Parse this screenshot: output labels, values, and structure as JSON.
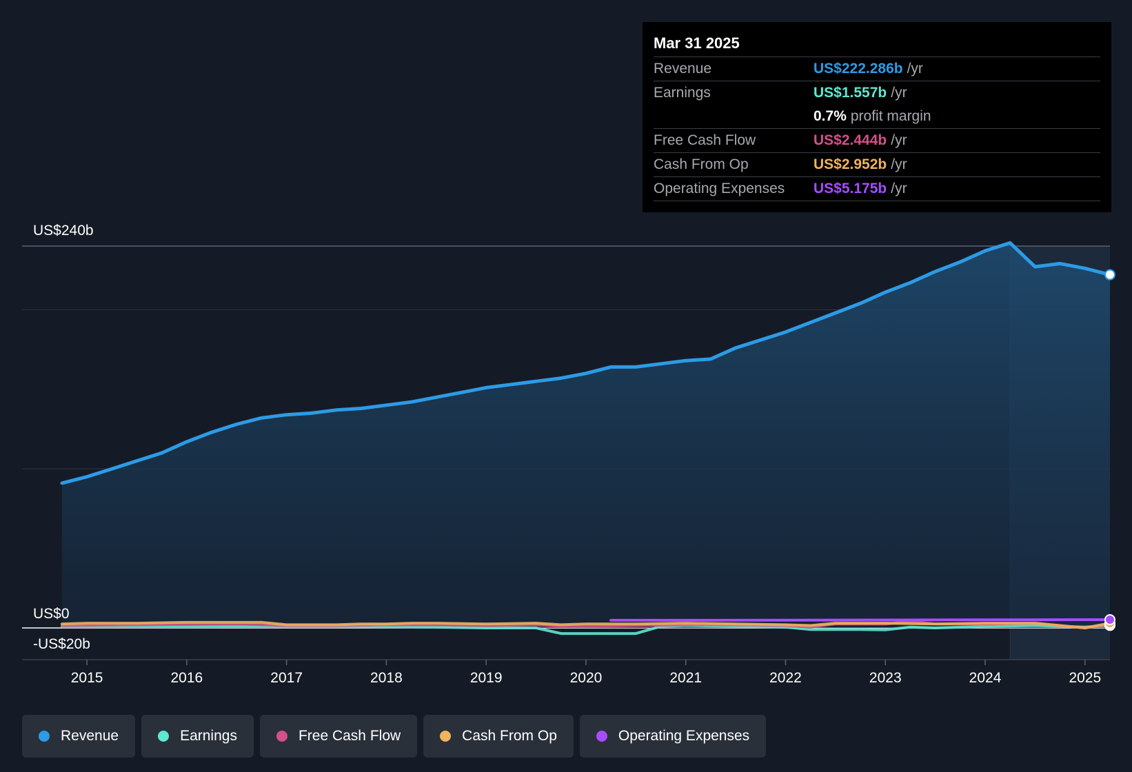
{
  "tooltip": {
    "date": "Mar 31 2025",
    "rows": [
      {
        "label": "Revenue",
        "value": "US$222.286b",
        "unit": "/yr",
        "color": "#2d9be6"
      },
      {
        "label": "Earnings",
        "value": "US$1.557b",
        "unit": "/yr",
        "color": "#5ee8d1"
      },
      {
        "label": "",
        "value": "0.7%",
        "unit": "profit margin",
        "color": "#ffffff"
      },
      {
        "label": "Free Cash Flow",
        "value": "US$2.444b",
        "unit": "/yr",
        "color": "#d4508a"
      },
      {
        "label": "Cash From Op",
        "value": "US$2.952b",
        "unit": "/yr",
        "color": "#f0b35e"
      },
      {
        "label": "Operating Expenses",
        "value": "US$5.175b",
        "unit": "/yr",
        "color": "#a64dff"
      }
    ]
  },
  "legend": [
    {
      "label": "Revenue",
      "color": "#2d9be6"
    },
    {
      "label": "Earnings",
      "color": "#5ee8d1"
    },
    {
      "label": "Free Cash Flow",
      "color": "#d4508a"
    },
    {
      "label": "Cash From Op",
      "color": "#f0b35e"
    },
    {
      "label": "Operating Expenses",
      "color": "#a64dff"
    }
  ],
  "chart_data": {
    "type": "line",
    "title": "",
    "xlabel": "",
    "ylabel": "",
    "y_axis_labels": [
      "US$240b",
      "US$0",
      "-US$20b"
    ],
    "x_tick_labels": [
      "2015",
      "2016",
      "2017",
      "2018",
      "2019",
      "2020",
      "2021",
      "2022",
      "2023",
      "2024",
      "2025"
    ],
    "xlim": [
      2014.35,
      2025.25
    ],
    "ylim": [
      -20,
      240
    ],
    "grid": true,
    "legend_position": "bottom",
    "highlight_start": 2024.25,
    "series": [
      {
        "name": "Revenue",
        "color": "#2d9be6",
        "area": true,
        "x": [
          2014.75,
          2015.0,
          2015.25,
          2015.5,
          2015.75,
          2016.0,
          2016.25,
          2016.5,
          2016.75,
          2017.0,
          2017.25,
          2017.5,
          2017.75,
          2018.0,
          2018.25,
          2018.5,
          2018.75,
          2019.0,
          2019.25,
          2019.5,
          2019.75,
          2020.0,
          2020.25,
          2020.5,
          2020.75,
          2021.0,
          2021.25,
          2021.5,
          2021.75,
          2022.0,
          2022.25,
          2022.5,
          2022.75,
          2023.0,
          2023.25,
          2023.5,
          2023.75,
          2024.0,
          2024.25,
          2024.5,
          2024.75,
          2025.0,
          2025.25
        ],
        "y": [
          91,
          95,
          100,
          105,
          110,
          117,
          123,
          128,
          132,
          134,
          135,
          137,
          138,
          140,
          142,
          145,
          148,
          151,
          153,
          155,
          157,
          160,
          164,
          164,
          166,
          168,
          169,
          176,
          181,
          186,
          192,
          198,
          204,
          211,
          217,
          224,
          230,
          237,
          242,
          227,
          229,
          226,
          222
        ]
      },
      {
        "name": "Earnings",
        "color": "#5ee8d1",
        "x": [
          2014.75,
          2015.5,
          2016.5,
          2017.5,
          2018.5,
          2019.0,
          2019.5,
          2019.75,
          2020.0,
          2020.5,
          2020.75,
          2021.0,
          2021.5,
          2022.0,
          2022.25,
          2022.75,
          2023.0,
          2023.25,
          2023.5,
          2024.0,
          2024.5,
          2025.0,
          2025.25
        ],
        "y": [
          1,
          1,
          1,
          1,
          0.5,
          0,
          0,
          -3.5,
          -3.5,
          -3.5,
          1,
          1.5,
          1,
          0.5,
          -1,
          -1,
          -1.2,
          0.5,
          0,
          1,
          1.5,
          0.5,
          1.6
        ]
      },
      {
        "name": "Free Cash Flow",
        "color": "#d4508a",
        "x": [
          2014.75,
          2015.5,
          2016.5,
          2017.0,
          2017.5,
          2018.0,
          2018.5,
          2019.0,
          2019.5,
          2019.75,
          2020.0,
          2020.5,
          2021.0,
          2021.5,
          2022.0,
          2022.25,
          2022.5,
          2023.0,
          2023.25,
          2023.5,
          2024.0,
          2024.5,
          2025.0,
          2025.25
        ],
        "y": [
          1.5,
          2,
          2.5,
          1.5,
          1.5,
          2,
          2,
          1.5,
          2,
          1,
          1,
          1.5,
          2,
          2,
          1.5,
          0.5,
          2.5,
          2.5,
          4,
          2.5,
          2.5,
          3,
          0,
          2.4
        ]
      },
      {
        "name": "Cash From Op",
        "color": "#f0b35e",
        "x": [
          2014.75,
          2015.0,
          2015.5,
          2016.0,
          2016.5,
          2016.75,
          2017.0,
          2017.5,
          2017.75,
          2018.0,
          2018.25,
          2018.5,
          2019.0,
          2019.5,
          2019.75,
          2020.0,
          2020.5,
          2021.0,
          2021.5,
          2022.0,
          2022.25,
          2022.5,
          2023.0,
          2023.5,
          2024.0,
          2024.5,
          2025.0,
          2025.25
        ],
        "y": [
          2.5,
          3,
          3,
          3.5,
          3.5,
          3.5,
          2,
          2,
          2.5,
          2.5,
          3,
          3,
          2.5,
          3,
          2,
          2.5,
          2.5,
          3,
          2.5,
          2,
          1.5,
          3,
          3,
          2.5,
          3,
          3,
          0,
          3
        ]
      },
      {
        "name": "Operating Expenses",
        "color": "#a64dff",
        "x": [
          2020.25,
          2021.0,
          2022.0,
          2023.0,
          2024.0,
          2025.0,
          2025.25
        ],
        "y": [
          4.8,
          4.8,
          4.9,
          5.0,
          5.1,
          5.2,
          5.2
        ]
      }
    ]
  }
}
